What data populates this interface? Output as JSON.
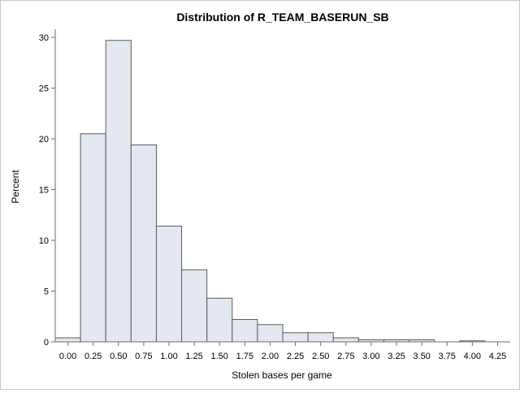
{
  "chart_data": {
    "type": "histogram",
    "title": "Distribution of R_TEAM_BASERUN_SB",
    "xlabel": "Stolen bases per game",
    "ylabel": "Percent",
    "bin_width": 0.25,
    "bins": [
      {
        "start": -0.125,
        "end": 0.125,
        "percent": 0.4
      },
      {
        "start": 0.125,
        "end": 0.375,
        "percent": 20.5
      },
      {
        "start": 0.375,
        "end": 0.625,
        "percent": 29.7
      },
      {
        "start": 0.625,
        "end": 0.875,
        "percent": 19.4
      },
      {
        "start": 0.875,
        "end": 1.125,
        "percent": 11.4
      },
      {
        "start": 1.125,
        "end": 1.375,
        "percent": 7.1
      },
      {
        "start": 1.375,
        "end": 1.625,
        "percent": 4.3
      },
      {
        "start": 1.625,
        "end": 1.875,
        "percent": 2.2
      },
      {
        "start": 1.875,
        "end": 2.125,
        "percent": 1.7
      },
      {
        "start": 2.125,
        "end": 2.375,
        "percent": 0.9
      },
      {
        "start": 2.375,
        "end": 2.625,
        "percent": 0.9
      },
      {
        "start": 2.625,
        "end": 2.875,
        "percent": 0.4
      },
      {
        "start": 2.875,
        "end": 3.125,
        "percent": 0.2
      },
      {
        "start": 3.125,
        "end": 3.375,
        "percent": 0.2
      },
      {
        "start": 3.375,
        "end": 3.625,
        "percent": 0.2
      },
      {
        "start": 3.875,
        "end": 4.125,
        "percent": 0.1
      }
    ],
    "x_ticks": [
      "0.00",
      "0.25",
      "0.50",
      "0.75",
      "1.00",
      "1.25",
      "1.50",
      "1.75",
      "2.00",
      "2.25",
      "2.50",
      "2.75",
      "3.00",
      "3.25",
      "3.50",
      "3.75",
      "4.00",
      "4.25"
    ],
    "y_ticks": [
      "0",
      "5",
      "10",
      "15",
      "20",
      "25",
      "30"
    ],
    "xlim": [
      -0.125,
      4.375
    ],
    "ylim": [
      0,
      30.8
    ],
    "grid": false,
    "colors": {
      "bar_fill": "#e4e8f1",
      "bar_stroke": "#5a5a5a",
      "axis": "#6e6e6e"
    }
  }
}
